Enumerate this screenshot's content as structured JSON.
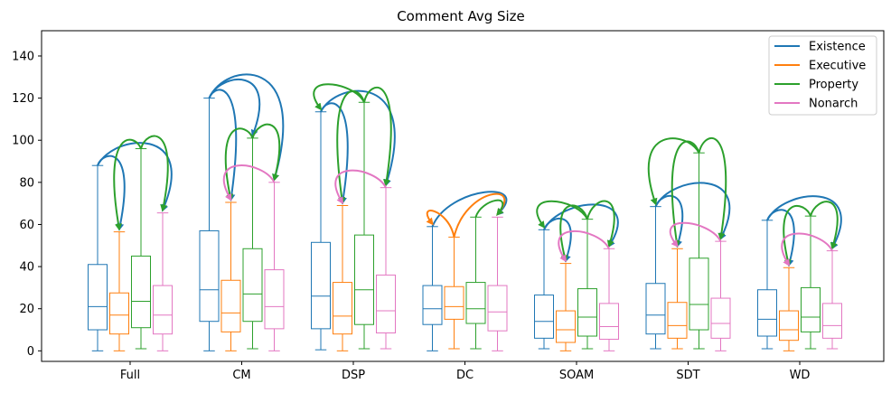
{
  "chart_data": {
    "type": "box",
    "title": "Comment Avg Size",
    "xlabel": "",
    "ylabel": "",
    "ylim": [
      -5,
      152
    ],
    "y_ticks": [
      0,
      20,
      40,
      60,
      80,
      100,
      120,
      140
    ],
    "grid": false,
    "legend_position": "top-right",
    "categories": [
      "Full",
      "CM",
      "DSP",
      "DC",
      "SOAM",
      "SDT",
      "WD"
    ],
    "series": [
      {
        "name": "Existence",
        "color": "#1f77b4",
        "boxes": [
          {
            "whislo": 0,
            "q1": 10,
            "med": 21,
            "q3": 41,
            "whishi": 88
          },
          {
            "whislo": 0,
            "q1": 14,
            "med": 29,
            "q3": 57,
            "whishi": 120
          },
          {
            "whislo": 0.5,
            "q1": 10.5,
            "med": 26,
            "q3": 51.5,
            "whishi": 113.5
          },
          {
            "whislo": 0,
            "q1": 12.5,
            "med": 20,
            "q3": 31,
            "whishi": 59
          },
          {
            "whislo": 1,
            "q1": 6,
            "med": 14,
            "q3": 26.5,
            "whishi": 57.5
          },
          {
            "whislo": 1,
            "q1": 8,
            "med": 17,
            "q3": 32,
            "whishi": 68.5
          },
          {
            "whislo": 1,
            "q1": 7,
            "med": 15,
            "q3": 29,
            "whishi": 62
          }
        ]
      },
      {
        "name": "Executive",
        "color": "#ff7f0e",
        "boxes": [
          {
            "whislo": 0,
            "q1": 8,
            "med": 17,
            "q3": 27.5,
            "whishi": 56.5
          },
          {
            "whislo": 0,
            "q1": 9,
            "med": 18,
            "q3": 33.5,
            "whishi": 70.5
          },
          {
            "whislo": 0,
            "q1": 8,
            "med": 16.5,
            "q3": 32.5,
            "whishi": 69
          },
          {
            "whislo": 1,
            "q1": 15,
            "med": 21,
            "q3": 30.5,
            "whishi": 54
          },
          {
            "whislo": 0,
            "q1": 4,
            "med": 10,
            "q3": 19,
            "whishi": 41.5
          },
          {
            "whislo": 1,
            "q1": 6,
            "med": 12,
            "q3": 23,
            "whishi": 48.5
          },
          {
            "whislo": 0,
            "q1": 5,
            "med": 10,
            "q3": 19,
            "whishi": 39.5
          }
        ]
      },
      {
        "name": "Property",
        "color": "#2ca02c",
        "boxes": [
          {
            "whislo": 1,
            "q1": 11,
            "med": 23.5,
            "q3": 45,
            "whishi": 96
          },
          {
            "whislo": 1,
            "q1": 14,
            "med": 27,
            "q3": 48.5,
            "whishi": 101
          },
          {
            "whislo": 1,
            "q1": 12.5,
            "med": 29,
            "q3": 55,
            "whishi": 118
          },
          {
            "whislo": 1,
            "q1": 13,
            "med": 20,
            "q3": 32.5,
            "whishi": 63.5
          },
          {
            "whislo": 1,
            "q1": 7,
            "med": 16,
            "q3": 29.5,
            "whishi": 62.5
          },
          {
            "whislo": 1,
            "q1": 10,
            "med": 22,
            "q3": 44,
            "whishi": 94
          },
          {
            "whislo": 1,
            "q1": 9,
            "med": 16,
            "q3": 30,
            "whishi": 64
          }
        ]
      },
      {
        "name": "Nonarch",
        "color": "#e377c2",
        "boxes": [
          {
            "whislo": 0,
            "q1": 8,
            "med": 17,
            "q3": 31,
            "whishi": 65.5
          },
          {
            "whislo": 0,
            "q1": 10.5,
            "med": 21,
            "q3": 38.5,
            "whishi": 80
          },
          {
            "whislo": 1,
            "q1": 8.5,
            "med": 19,
            "q3": 36,
            "whishi": 77.5
          },
          {
            "whislo": 0,
            "q1": 9.5,
            "med": 18.5,
            "q3": 31,
            "whishi": 63.5
          },
          {
            "whislo": 0,
            "q1": 5.5,
            "med": 11.5,
            "q3": 22.5,
            "whishi": 48.5
          },
          {
            "whislo": 0,
            "q1": 6,
            "med": 13,
            "q3": 25,
            "whishi": 52
          },
          {
            "whislo": 1,
            "q1": 6,
            "med": 12,
            "q3": 22.5,
            "whishi": 47.5
          }
        ]
      }
    ],
    "arrows": [
      {
        "category": "Full",
        "from": "Existence",
        "to": "Executive",
        "color": "#1f77b4"
      },
      {
        "category": "Full",
        "from": "Existence",
        "to": "Nonarch",
        "color": "#1f77b4"
      },
      {
        "category": "Full",
        "from": "Property",
        "to": "Executive",
        "color": "#2ca02c"
      },
      {
        "category": "Full",
        "from": "Property",
        "to": "Nonarch",
        "color": "#2ca02c"
      },
      {
        "category": "CM",
        "from": "Existence",
        "to": "Executive",
        "color": "#1f77b4"
      },
      {
        "category": "CM",
        "from": "Existence",
        "to": "Property",
        "color": "#1f77b4"
      },
      {
        "category": "CM",
        "from": "Existence",
        "to": "Nonarch",
        "color": "#1f77b4"
      },
      {
        "category": "CM",
        "from": "Property",
        "to": "Executive",
        "color": "#2ca02c"
      },
      {
        "category": "CM",
        "from": "Property",
        "to": "Nonarch",
        "color": "#2ca02c"
      },
      {
        "category": "CM",
        "from": "Nonarch",
        "to": "Executive",
        "color": "#e377c2"
      },
      {
        "category": "DSP",
        "from": "Existence",
        "to": "Executive",
        "color": "#1f77b4"
      },
      {
        "category": "DSP",
        "from": "Existence",
        "to": "Nonarch",
        "color": "#1f77b4"
      },
      {
        "category": "DSP",
        "from": "Property",
        "to": "Existence",
        "color": "#2ca02c"
      },
      {
        "category": "DSP",
        "from": "Property",
        "to": "Executive",
        "color": "#2ca02c"
      },
      {
        "category": "DSP",
        "from": "Property",
        "to": "Nonarch",
        "color": "#2ca02c"
      },
      {
        "category": "DSP",
        "from": "Nonarch",
        "to": "Executive",
        "color": "#e377c2"
      },
      {
        "category": "DC",
        "from": "Existence",
        "to": "Nonarch",
        "color": "#1f77b4"
      },
      {
        "category": "DC",
        "from": "Executive",
        "to": "Existence",
        "color": "#ff7f0e"
      },
      {
        "category": "DC",
        "from": "Executive",
        "to": "Nonarch",
        "color": "#ff7f0e"
      },
      {
        "category": "DC",
        "from": "Property",
        "to": "Nonarch",
        "color": "#2ca02c"
      },
      {
        "category": "SOAM",
        "from": "Existence",
        "to": "Executive",
        "color": "#1f77b4"
      },
      {
        "category": "SOAM",
        "from": "Existence",
        "to": "Nonarch",
        "color": "#1f77b4"
      },
      {
        "category": "SOAM",
        "from": "Property",
        "to": "Existence",
        "color": "#2ca02c"
      },
      {
        "category": "SOAM",
        "from": "Property",
        "to": "Executive",
        "color": "#2ca02c"
      },
      {
        "category": "SOAM",
        "from": "Property",
        "to": "Nonarch",
        "color": "#2ca02c"
      },
      {
        "category": "SOAM",
        "from": "Nonarch",
        "to": "Executive",
        "color": "#e377c2"
      },
      {
        "category": "SDT",
        "from": "Existence",
        "to": "Executive",
        "color": "#1f77b4"
      },
      {
        "category": "SDT",
        "from": "Existence",
        "to": "Nonarch",
        "color": "#1f77b4"
      },
      {
        "category": "SDT",
        "from": "Property",
        "to": "Existence",
        "color": "#2ca02c"
      },
      {
        "category": "SDT",
        "from": "Property",
        "to": "Executive",
        "color": "#2ca02c"
      },
      {
        "category": "SDT",
        "from": "Property",
        "to": "Nonarch",
        "color": "#2ca02c"
      },
      {
        "category": "SDT",
        "from": "Nonarch",
        "to": "Executive",
        "color": "#e377c2"
      },
      {
        "category": "WD",
        "from": "Existence",
        "to": "Executive",
        "color": "#1f77b4"
      },
      {
        "category": "WD",
        "from": "Existence",
        "to": "Nonarch",
        "color": "#1f77b4"
      },
      {
        "category": "WD",
        "from": "Property",
        "to": "Executive",
        "color": "#2ca02c"
      },
      {
        "category": "WD",
        "from": "Property",
        "to": "Nonarch",
        "color": "#2ca02c"
      },
      {
        "category": "WD",
        "from": "Nonarch",
        "to": "Executive",
        "color": "#e377c2"
      }
    ]
  }
}
